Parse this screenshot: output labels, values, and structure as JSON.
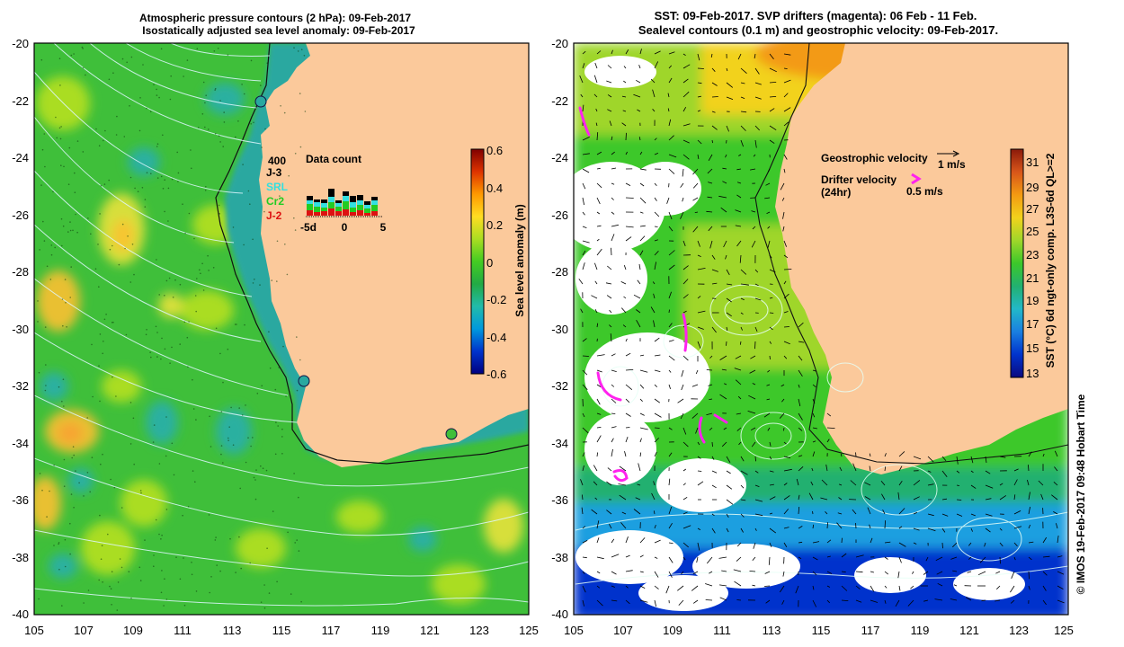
{
  "left_panel": {
    "title_line1": "Atmospheric pressure contours (2 hPa): 09-Feb-2017",
    "title_line2": "Isostatically adjusted sea level anomaly: 09-Feb-2017",
    "lat_labels": [
      "-20",
      "-22",
      "-24",
      "-26",
      "-28",
      "-30",
      "-32",
      "-34",
      "-36",
      "-38",
      "-40"
    ],
    "lon_labels": [
      "105",
      "107",
      "109",
      "111",
      "113",
      "115",
      "117",
      "119",
      "121",
      "123",
      "125"
    ],
    "inset": {
      "title": "Data count",
      "max_label": "400",
      "legend": [
        {
          "label": "J-3",
          "color": "#000000"
        },
        {
          "label": "SRL",
          "color": "#33e0e0"
        },
        {
          "label": "Cr2",
          "color": "#22cc22"
        },
        {
          "label": "J-2",
          "color": "#dd1111"
        }
      ],
      "x_labels": [
        "-5d",
        "0",
        "5"
      ]
    },
    "colorbar": {
      "label": "Sea level anomaly (m)",
      "ticks": [
        "0.6",
        "0.4",
        "0.2",
        "0",
        "-0.2",
        "-0.4",
        "-0.6"
      ],
      "colors": [
        "#000080",
        "#0033cc",
        "#0099dd",
        "#22bbaa",
        "#22aa44",
        "#44cc22",
        "#aadd22",
        "#ffdd22",
        "#ff9900",
        "#dd3300",
        "#800000"
      ]
    },
    "palette": {
      "sea": "#3fbf3a",
      "land": "#fbc99b",
      "shelf": "#2aa8a0",
      "warm": "#d7df3a",
      "hot": "#f7a533",
      "cool": "#2ab0a0"
    }
  },
  "right_panel": {
    "title_line1": "SST: 09-Feb-2017. SVP drifters (magenta): 06 Feb - 11 Feb.",
    "title_line2": "Sealevel contours (0.1 m) and geostrophic velocity: 09-Feb-2017.",
    "lat_labels": [
      "-20",
      "-22",
      "-24",
      "-26",
      "-28",
      "-30",
      "-32",
      "-34",
      "-36",
      "-38",
      "-40"
    ],
    "lon_labels": [
      "105",
      "107",
      "109",
      "111",
      "113",
      "115",
      "117",
      "119",
      "121",
      "123",
      "125"
    ],
    "legend": {
      "geo_label": "Geostrophic velocity",
      "geo_scale": "1 m/s",
      "drifter_label": "Drifter velocity",
      "drifter_sub": "(24hr)",
      "drifter_scale": "0.5 m/s"
    },
    "colorbar": {
      "label": "SST (°C) 6d ngt-only comp. L3S-6d QL>=2",
      "ticks": [
        "31",
        "29",
        "27",
        "25",
        "23",
        "21",
        "19",
        "17",
        "15",
        "13"
      ],
      "colors": [
        "#0a0a80",
        "#0033cc",
        "#1a7fe0",
        "#22b8c8",
        "#22b070",
        "#3cc82a",
        "#9fd62a",
        "#f2d21c",
        "#f39a12",
        "#d8561a",
        "#8b1a0a"
      ]
    },
    "palette": {
      "drifter": "#ff22ee",
      "land": "#fbc99b"
    }
  },
  "credit": "© IMOS 19-Feb-2017 09:48 Hobart Time"
}
